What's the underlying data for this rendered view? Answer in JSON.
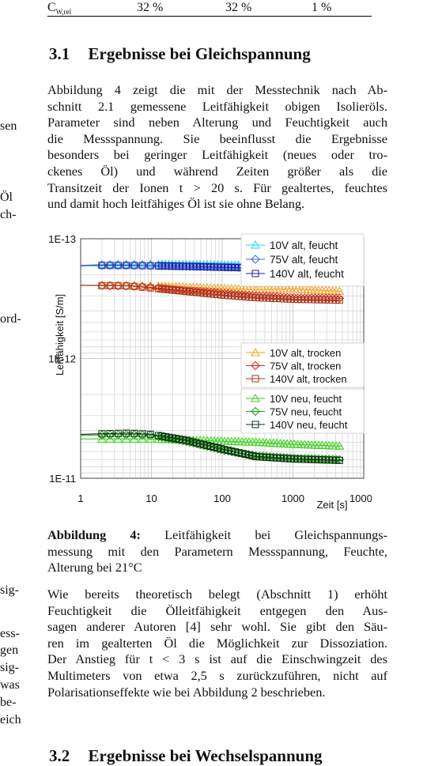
{
  "table_fragment": {
    "label_main": "C",
    "label_sub": "W,rel",
    "values": [
      "32 %",
      "32 %",
      "1 %"
    ]
  },
  "section_31": {
    "number": "3.1",
    "title": "Ergebnisse bei Gleichspannung",
    "paragraph_lines": [
      "Abbildung 4 zeigt die mit der Messtechnik nach Ab-",
      "schnitt 2.1 gemessene Leitfähigkeit obigen Isolieröls.",
      "Parameter sind neben Alterung und Feuchtigkeit auch",
      "die Messspannung. Sie beeinflusst die Ergebnisse",
      "besonders bei geringer Leitfähigkeit (neues oder tro-",
      "ckenes Öl) und während Zeiten größer als die",
      "Transitzeit der Ionen t > 20 s. Für gealtertes, feuchtes",
      "und damit hoch leitfähiges Öl ist sie ohne Belang."
    ]
  },
  "left_column_fragments": [
    {
      "text": "sen",
      "row": 158
    },
    {
      "text": "Öl",
      "row": 248
    },
    {
      "text": "ch-",
      "row": 270
    },
    {
      "text": "ord-",
      "row": 402
    },
    {
      "text": "sig-",
      "row": 745
    },
    {
      "text": "ess-",
      "row": 800
    },
    {
      "text": "gen",
      "row": 821
    },
    {
      "text": "sig-",
      "row": 843
    },
    {
      "text": "was",
      "row": 865
    },
    {
      "text": "be-",
      "row": 887
    },
    {
      "text": "eich",
      "row": 909
    }
  ],
  "chart_data": {
    "type": "line",
    "x_scale": "log",
    "y_scale": "log",
    "xlim": [
      1,
      10000
    ],
    "ylim": [
      1e-11,
      1e-13
    ],
    "x_ticks": [
      "1",
      "10",
      "100",
      "1000",
      "10000"
    ],
    "y_ticks": [
      "1E-13",
      "1E-12",
      "1E-11"
    ],
    "xlabel": "Zeit [s]",
    "ylabel": "Leitfähigkeit [S/m]",
    "grid": true,
    "series": [
      {
        "name": "10V alt, feucht",
        "color": "#22d6f0",
        "marker": "triangle",
        "legend": 0,
        "points": [
          [
            1,
            1.67e-13
          ],
          [
            2,
            1.64e-13
          ],
          [
            5,
            1.63e-13
          ],
          [
            10,
            1.63e-13
          ],
          [
            30,
            1.64e-13
          ],
          [
            100,
            1.65e-13
          ],
          [
            300,
            1.67e-13
          ],
          [
            1000,
            1.68e-13
          ],
          [
            5000,
            1.7e-13
          ]
        ]
      },
      {
        "name": "75V alt, feucht",
        "color": "#4466ee",
        "marker": "diamond",
        "legend": 0,
        "points": [
          [
            1,
            1.68e-13
          ],
          [
            2,
            1.67e-13
          ],
          [
            5,
            1.67e-13
          ],
          [
            10,
            1.68e-13
          ],
          [
            30,
            1.7e-13
          ],
          [
            100,
            1.72e-13
          ],
          [
            300,
            1.74e-13
          ],
          [
            1000,
            1.76e-13
          ],
          [
            5000,
            1.8e-13
          ]
        ]
      },
      {
        "name": "140V alt, feucht",
        "color": "#1c1c9a",
        "marker": "square",
        "legend": 0,
        "points": [
          [
            1,
            1.68e-13
          ],
          [
            2,
            1.67e-13
          ],
          [
            5,
            1.67e-13
          ],
          [
            10,
            1.68e-13
          ],
          [
            30,
            1.7e-13
          ],
          [
            100,
            1.73e-13
          ],
          [
            300,
            1.76e-13
          ],
          [
            1000,
            1.8e-13
          ],
          [
            5000,
            1.84e-13
          ]
        ]
      },
      {
        "name": "10V alt, trocken",
        "color": "#f0a020",
        "marker": "triangle",
        "legend": 1,
        "points": [
          [
            1,
            2.45e-13
          ],
          [
            2,
            2.45e-13
          ],
          [
            5,
            2.46e-13
          ],
          [
            10,
            2.48e-13
          ],
          [
            30,
            2.53e-13
          ],
          [
            100,
            2.6e-13
          ],
          [
            300,
            2.65e-13
          ],
          [
            1000,
            2.62e-13
          ],
          [
            5000,
            2.75e-13
          ]
        ]
      },
      {
        "name": "75V alt, trocken",
        "color": "#e62020",
        "marker": "diamond",
        "legend": 1,
        "points": [
          [
            1,
            2.45e-13
          ],
          [
            2,
            2.46e-13
          ],
          [
            5,
            2.48e-13
          ],
          [
            10,
            2.55e-13
          ],
          [
            30,
            2.7e-13
          ],
          [
            100,
            2.85e-13
          ],
          [
            300,
            3e-13
          ],
          [
            1000,
            3.1e-13
          ],
          [
            5000,
            3.15e-13
          ]
        ]
      },
      {
        "name": "140V alt, trocken",
        "color": "#9a3a1a",
        "marker": "square",
        "legend": 1,
        "points": [
          [
            1,
            2.45e-13
          ],
          [
            2,
            2.46e-13
          ],
          [
            5,
            2.48e-13
          ],
          [
            10,
            2.58e-13
          ],
          [
            30,
            2.75e-13
          ],
          [
            100,
            2.95e-13
          ],
          [
            300,
            3.1e-13
          ],
          [
            1000,
            3.2e-13
          ],
          [
            5000,
            3.26e-13
          ]
        ]
      },
      {
        "name": "10V neu, feucht",
        "color": "#34d014",
        "marker": "triangle",
        "legend": 2,
        "points": [
          [
            1,
            4.7e-12
          ],
          [
            2,
            4.7e-12
          ],
          [
            5,
            4.7e-12
          ],
          [
            10,
            4.7e-12
          ],
          [
            30,
            4.8e-12
          ],
          [
            100,
            4.9e-12
          ],
          [
            300,
            5e-12
          ],
          [
            1000,
            5.2e-12
          ],
          [
            5000,
            5.4e-12
          ]
        ]
      },
      {
        "name": "75V neu, feucht",
        "color": "#1c9a1c",
        "marker": "diamond",
        "legend": 2,
        "points": [
          [
            1,
            4.4e-12
          ],
          [
            2,
            4.35e-12
          ],
          [
            5,
            4.3e-12
          ],
          [
            10,
            4.4e-12
          ],
          [
            30,
            4.9e-12
          ],
          [
            100,
            5.8e-12
          ],
          [
            300,
            6.5e-12
          ],
          [
            1000,
            6.8e-12
          ],
          [
            5000,
            7e-12
          ]
        ]
      },
      {
        "name": "140V neu, feucht",
        "color": "#0c2c0c",
        "marker": "square",
        "legend": 2,
        "points": [
          [
            1,
            4.3e-12
          ],
          [
            2,
            4.25e-12
          ],
          [
            5,
            4.2e-12
          ],
          [
            10,
            4.3e-12
          ],
          [
            30,
            4.8e-12
          ],
          [
            100,
            5.7e-12
          ],
          [
            300,
            6.6e-12
          ],
          [
            1000,
            6.9e-12
          ],
          [
            5000,
            7.1e-12
          ]
        ]
      }
    ]
  },
  "figure_caption": {
    "label": "Abbildung 4:",
    "line1": " Leitfähigkeit bei Gleichspannungs-",
    "line2": "messung mit den Parametern Messspannung, Feuchte,",
    "line3": "Alterung bei 21°C"
  },
  "paragraph_2_lines": [
    "Wie bereits theoretisch belegt (Abschnitt 1) erhöht",
    "Feuchtigkeit die Ölleitfähigkeit entgegen den Aus-",
    "sagen anderer Autoren [4] sehr wohl. Sie gibt den Säu-",
    "ren im gealterten Öl die Möglichkeit zur Dissoziation.",
    "Der Anstieg für t < 3 s ist auf die Einschwingzeit des",
    "Multimeters von etwa 2,5 s zurückzuführen, nicht auf",
    "Polarisationseffekte wie bei Abbildung 2 beschrieben."
  ],
  "section_32": {
    "number": "3.2",
    "title": "Ergebnisse bei Wechselspannung"
  }
}
